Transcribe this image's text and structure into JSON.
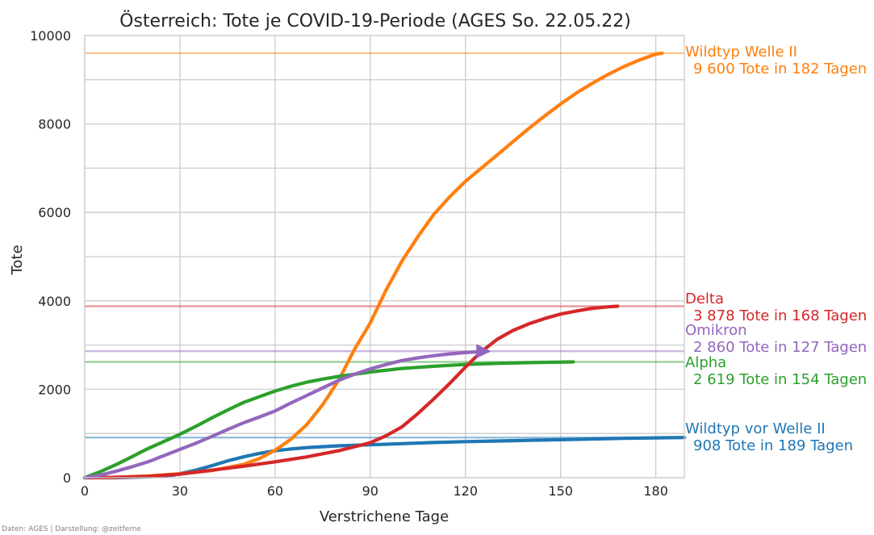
{
  "chart_data": {
    "type": "line",
    "title": "Österreich: Tote je COVID-19-Periode (AGES So. 22.05.22)",
    "xlabel": "Verstrichene Tage",
    "ylabel": "Tote",
    "xlim": [
      0,
      189
    ],
    "ylim": [
      0,
      10000
    ],
    "xticks": [
      "0",
      "30",
      "60",
      "90",
      "120",
      "150",
      "180"
    ],
    "yticks": [
      "0",
      "2000",
      "4000",
      "6000",
      "8000",
      "10000"
    ],
    "grid": true,
    "legend": "none",
    "credit": "Daten: AGES | Darstellung: @zeitferne",
    "series": [
      {
        "key": "wildtyp_vor",
        "color": "#1f77b4",
        "reference_value": 908,
        "label": "Wildtyp vor Welle II",
        "sublabel": "908 Tote in 189 Tagen",
        "points": [
          [
            0,
            0
          ],
          [
            10,
            0
          ],
          [
            20,
            20
          ],
          [
            28,
            60
          ],
          [
            35,
            170
          ],
          [
            40,
            270
          ],
          [
            45,
            380
          ],
          [
            50,
            470
          ],
          [
            55,
            550
          ],
          [
            60,
            610
          ],
          [
            65,
            650
          ],
          [
            70,
            680
          ],
          [
            80,
            720
          ],
          [
            90,
            745
          ],
          [
            100,
            770
          ],
          [
            110,
            795
          ],
          [
            120,
            815
          ],
          [
            130,
            830
          ],
          [
            140,
            845
          ],
          [
            150,
            860
          ],
          [
            160,
            875
          ],
          [
            170,
            890
          ],
          [
            180,
            902
          ],
          [
            189,
            908
          ]
        ]
      },
      {
        "key": "wildtyp_welle2",
        "color": "#ff7f0e",
        "reference_value": 9600,
        "label": "Wildtyp Welle II",
        "sublabel": "9 600 Tote in 182 Tagen",
        "points": [
          [
            0,
            0
          ],
          [
            10,
            10
          ],
          [
            20,
            40
          ],
          [
            30,
            90
          ],
          [
            40,
            160
          ],
          [
            50,
            300
          ],
          [
            55,
            430
          ],
          [
            60,
            620
          ],
          [
            65,
            870
          ],
          [
            70,
            1200
          ],
          [
            75,
            1650
          ],
          [
            80,
            2200
          ],
          [
            85,
            2900
          ],
          [
            90,
            3500
          ],
          [
            95,
            4250
          ],
          [
            100,
            4900
          ],
          [
            105,
            5450
          ],
          [
            110,
            5950
          ],
          [
            115,
            6350
          ],
          [
            120,
            6700
          ],
          [
            125,
            7000
          ],
          [
            130,
            7300
          ],
          [
            135,
            7600
          ],
          [
            140,
            7900
          ],
          [
            145,
            8180
          ],
          [
            150,
            8450
          ],
          [
            155,
            8700
          ],
          [
            160,
            8920
          ],
          [
            165,
            9120
          ],
          [
            170,
            9300
          ],
          [
            175,
            9450
          ],
          [
            180,
            9580
          ],
          [
            182,
            9600
          ]
        ]
      },
      {
        "key": "alpha",
        "color": "#2ca02c",
        "reference_value": 2619,
        "label": "Alpha",
        "sublabel": "2 619 Tote in 154 Tagen",
        "points": [
          [
            0,
            0
          ],
          [
            5,
            140
          ],
          [
            10,
            300
          ],
          [
            15,
            480
          ],
          [
            20,
            660
          ],
          [
            25,
            820
          ],
          [
            30,
            980
          ],
          [
            35,
            1160
          ],
          [
            40,
            1350
          ],
          [
            45,
            1530
          ],
          [
            50,
            1700
          ],
          [
            55,
            1830
          ],
          [
            60,
            1960
          ],
          [
            65,
            2070
          ],
          [
            70,
            2160
          ],
          [
            75,
            2230
          ],
          [
            80,
            2290
          ],
          [
            85,
            2340
          ],
          [
            90,
            2390
          ],
          [
            95,
            2430
          ],
          [
            100,
            2470
          ],
          [
            110,
            2520
          ],
          [
            120,
            2560
          ],
          [
            130,
            2585
          ],
          [
            140,
            2602
          ],
          [
            154,
            2619
          ]
        ]
      },
      {
        "key": "delta",
        "color": "#d62728",
        "reference_value": 3878,
        "label": "Delta",
        "sublabel": "3 878 Tote in 168 Tagen",
        "points": [
          [
            0,
            0
          ],
          [
            10,
            10
          ],
          [
            20,
            30
          ],
          [
            30,
            80
          ],
          [
            40,
            170
          ],
          [
            50,
            260
          ],
          [
            60,
            360
          ],
          [
            70,
            470
          ],
          [
            80,
            610
          ],
          [
            90,
            790
          ],
          [
            95,
            950
          ],
          [
            100,
            1150
          ],
          [
            105,
            1450
          ],
          [
            110,
            1780
          ],
          [
            115,
            2130
          ],
          [
            120,
            2500
          ],
          [
            125,
            2850
          ],
          [
            130,
            3130
          ],
          [
            135,
            3330
          ],
          [
            140,
            3480
          ],
          [
            145,
            3600
          ],
          [
            150,
            3700
          ],
          [
            155,
            3770
          ],
          [
            160,
            3830
          ],
          [
            165,
            3865
          ],
          [
            168,
            3878
          ]
        ]
      },
      {
        "key": "omikron",
        "color": "#9467bd",
        "reference_value": 2860,
        "label": "Omikron",
        "sublabel": "2 860 Tote in 127 Tagen",
        "points": [
          [
            0,
            0
          ],
          [
            5,
            60
          ],
          [
            10,
            150
          ],
          [
            15,
            250
          ],
          [
            20,
            360
          ],
          [
            25,
            500
          ],
          [
            30,
            640
          ],
          [
            35,
            780
          ],
          [
            40,
            930
          ],
          [
            45,
            1090
          ],
          [
            50,
            1240
          ],
          [
            55,
            1370
          ],
          [
            60,
            1510
          ],
          [
            65,
            1690
          ],
          [
            70,
            1860
          ],
          [
            75,
            2030
          ],
          [
            80,
            2200
          ],
          [
            85,
            2340
          ],
          [
            90,
            2460
          ],
          [
            95,
            2560
          ],
          [
            100,
            2650
          ],
          [
            105,
            2710
          ],
          [
            110,
            2760
          ],
          [
            115,
            2800
          ],
          [
            120,
            2830
          ],
          [
            127,
            2860
          ]
        ]
      }
    ],
    "annotation_order": [
      "wildtyp_welle2",
      "delta",
      "omikron",
      "alpha",
      "wildtyp_vor"
    ]
  }
}
